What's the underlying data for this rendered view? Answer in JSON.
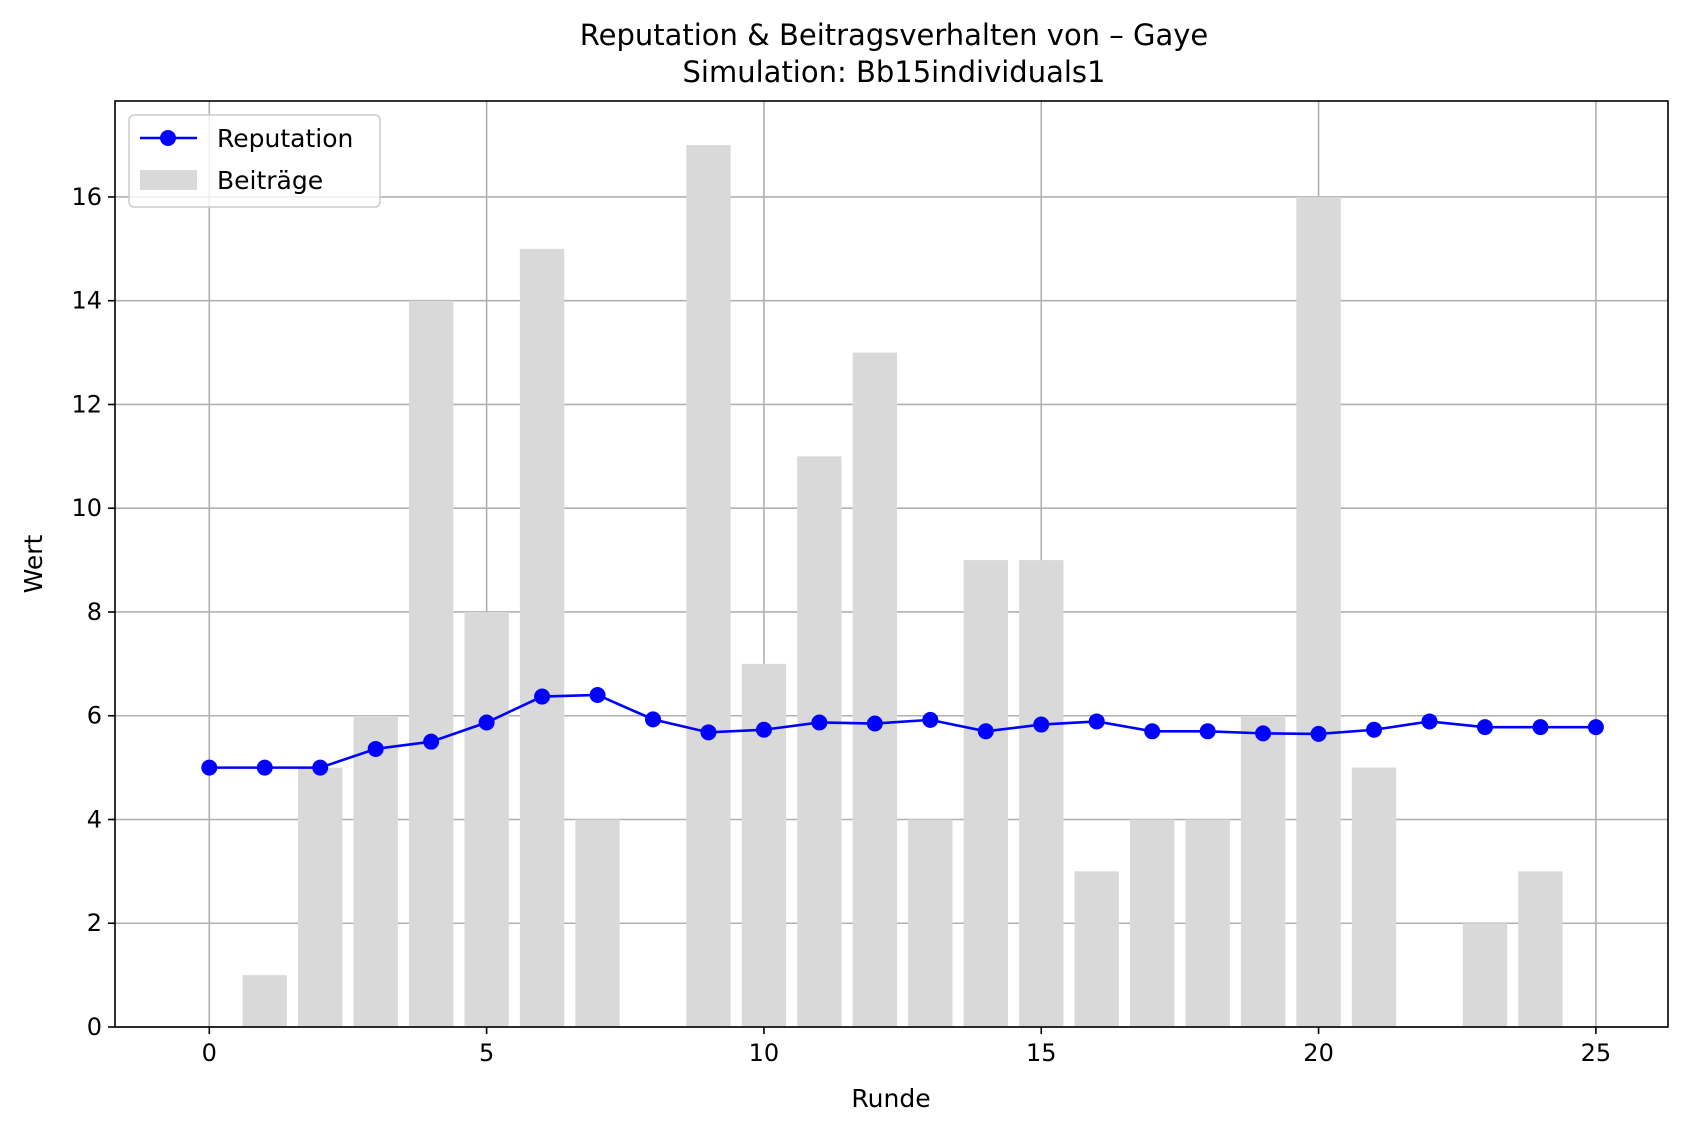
{
  "chart_data": {
    "type": "bar+line",
    "title": "Reputation & Beitragsverhalten von – Gaye",
    "subtitle": "Simulation: Bb15individuals1",
    "xlabel": "Runde",
    "ylabel": "Wert",
    "xlim": [
      -1.7,
      26.3
    ],
    "ylim": [
      0,
      17.85
    ],
    "xticks": [
      0,
      5,
      10,
      15,
      20,
      25
    ],
    "yticks": [
      0,
      2,
      4,
      6,
      8,
      10,
      12,
      14,
      16
    ],
    "grid": true,
    "legend_position": "top-left",
    "x": [
      0,
      1,
      2,
      3,
      4,
      5,
      6,
      7,
      8,
      9,
      10,
      11,
      12,
      13,
      14,
      15,
      16,
      17,
      18,
      19,
      20,
      21,
      22,
      23,
      24,
      25
    ],
    "series": [
      {
        "name": "Reputation",
        "kind": "line",
        "marker": "circle",
        "color": "#0000ff",
        "values": [
          5.0,
          5.0,
          5.0,
          5.36,
          5.5,
          5.87,
          6.37,
          6.4,
          5.93,
          5.68,
          5.73,
          5.87,
          5.85,
          5.92,
          5.7,
          5.83,
          5.89,
          5.7,
          5.7,
          5.66,
          5.65,
          5.73,
          5.89,
          5.78,
          5.78,
          5.78
        ]
      },
      {
        "name": "Beiträge",
        "kind": "bar",
        "color": "#d9d9d9",
        "values": [
          0,
          1,
          5,
          6,
          14,
          8,
          15,
          4,
          0,
          17,
          7,
          11,
          13,
          4,
          9,
          9,
          3,
          4,
          4,
          6,
          16,
          5,
          0,
          2,
          3,
          0
        ]
      }
    ]
  }
}
